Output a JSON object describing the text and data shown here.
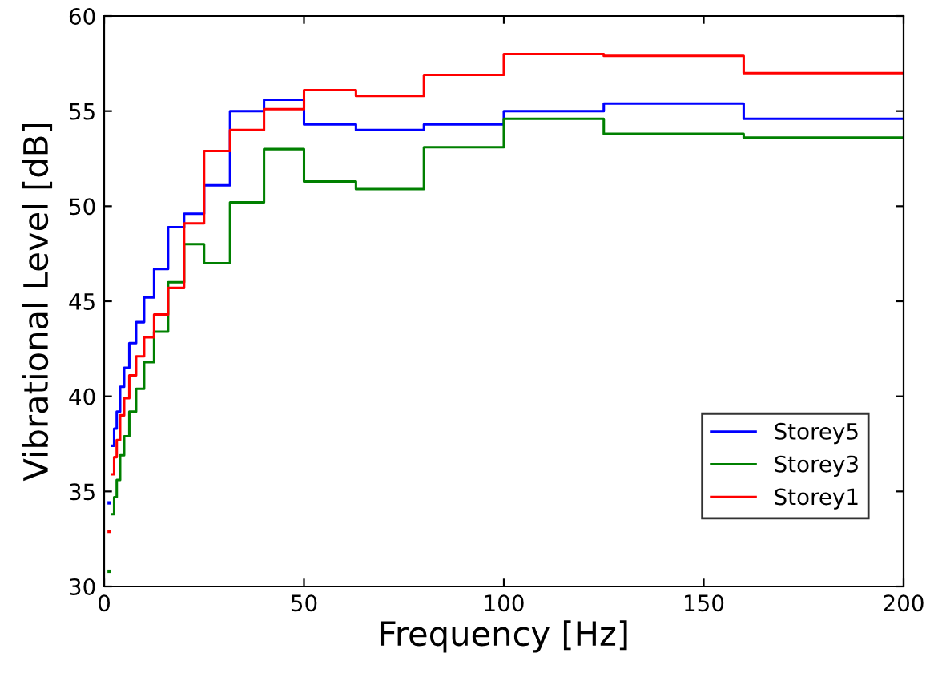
{
  "chart_data": {
    "type": "step",
    "xlabel": "Frequency [Hz]",
    "ylabel": "Vibrational Level [dB]",
    "x": [
      1.25,
      1.6,
      2,
      2.5,
      3.15,
      4,
      5,
      6.3,
      8,
      10,
      12.5,
      16,
      20,
      25,
      31.5,
      40,
      50,
      63,
      80,
      100,
      125,
      160,
      200
    ],
    "series": [
      {
        "name": "Storey5",
        "color": "#0000ff",
        "values": [
          34.4,
          null,
          37.4,
          38.3,
          39.2,
          40.5,
          41.5,
          42.8,
          43.9,
          45.2,
          46.7,
          48.9,
          49.6,
          51.1,
          55.0,
          55.6,
          54.3,
          54.0,
          54.3,
          55.0,
          55.4,
          54.6,
          54.6
        ]
      },
      {
        "name": "Storey3",
        "color": "#008000",
        "values": [
          30.8,
          null,
          33.8,
          34.7,
          35.6,
          36.9,
          37.9,
          39.2,
          40.4,
          41.8,
          43.4,
          46.0,
          48.0,
          47.0,
          50.2,
          53.0,
          51.3,
          50.9,
          53.1,
          54.6,
          53.8,
          53.6,
          53.6
        ]
      },
      {
        "name": "Storey1",
        "color": "#ff0000",
        "values": [
          32.9,
          null,
          35.9,
          36.8,
          37.7,
          39.0,
          39.9,
          41.1,
          42.1,
          43.1,
          44.3,
          45.7,
          49.1,
          52.9,
          54.0,
          55.1,
          56.1,
          55.8,
          56.9,
          58.0,
          57.9,
          57.0,
          57.0
        ]
      }
    ],
    "xlim": [
      0,
      200
    ],
    "ylim": [
      30,
      60
    ],
    "xticks": [
      0,
      50,
      100,
      150,
      200
    ],
    "yticks": [
      30,
      35,
      40,
      45,
      50,
      55,
      60
    ],
    "legend": "bottom right",
    "grid": false
  }
}
